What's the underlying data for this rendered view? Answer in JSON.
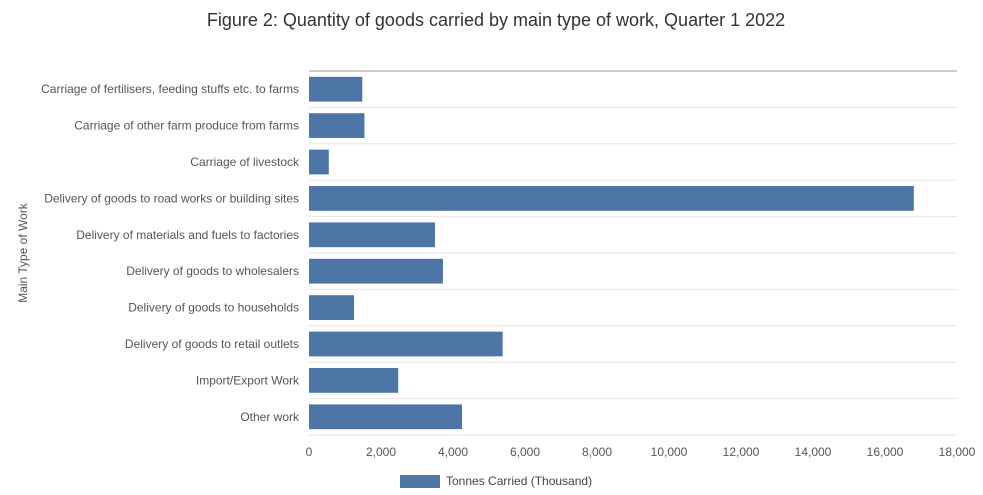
{
  "chart_data": {
    "type": "bar",
    "orientation": "horizontal",
    "title": "Figure 2: Quantity of goods carried by main type of work, Quarter 1 2022",
    "xlabel": "",
    "ylabel": "Main Type of Work",
    "xlim": [
      0,
      18000
    ],
    "x_ticks": [
      0,
      2000,
      4000,
      6000,
      8000,
      10000,
      12000,
      14000,
      16000,
      18000
    ],
    "x_tick_labels": [
      "0",
      "2,000",
      "4,000",
      "6,000",
      "8,000",
      "10,000",
      "12,000",
      "14,000",
      "16,000",
      "18,000"
    ],
    "categories": [
      "Carriage of fertilisers, feeding stuffs etc. to farms",
      "Carriage of other farm produce from farms",
      "Carriage of livestock",
      "Delivery of goods to road works or building sites",
      "Delivery of materials and fuels to factories",
      "Delivery of goods to wholesalers",
      "Delivery of goods to households",
      "Delivery of goods to retail outlets",
      "Import/Export Work",
      "Other work"
    ],
    "series": [
      {
        "name": "Tonnes Carried (Thousand)",
        "color": "#4d76a6",
        "values": [
          1480,
          1540,
          550,
          16800,
          3500,
          3720,
          1250,
          5380,
          2480,
          4250
        ]
      }
    ],
    "grid": true,
    "legend_position": "bottom-center"
  }
}
